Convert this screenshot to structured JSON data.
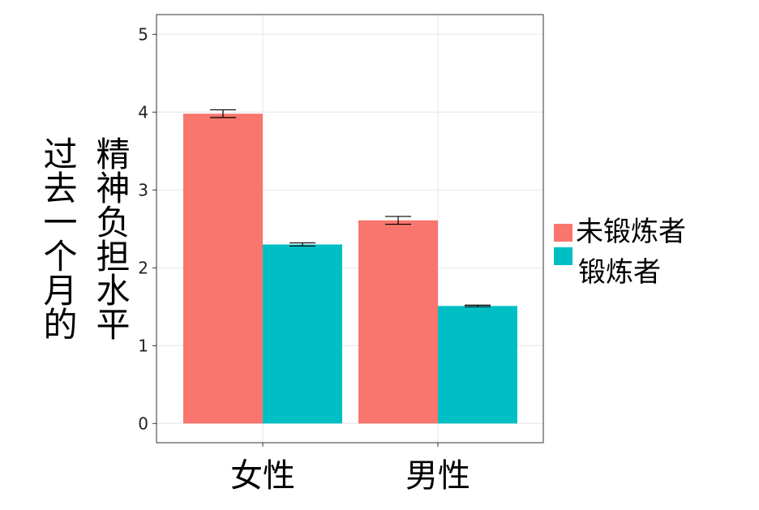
{
  "chart_data": {
    "type": "bar",
    "title": "",
    "ylabel_lines": [
      "过去一个月的",
      "精神负担水平"
    ],
    "xlabel": "",
    "categories": [
      "女性",
      "男性"
    ],
    "ylim": [
      0,
      5.25
    ],
    "yticks": [
      0,
      1,
      2,
      3,
      4,
      5
    ],
    "grid": true,
    "legend_position": "right",
    "series": [
      {
        "name": "未锻炼者",
        "color": "#F8766D",
        "values": [
          3.98,
          2.61
        ],
        "errors": [
          0.05,
          0.05
        ]
      },
      {
        "name": "锻炼者",
        "color": "#00BFC4",
        "values": [
          2.3,
          1.51
        ],
        "errors": [
          0.02,
          0.01
        ]
      }
    ]
  }
}
